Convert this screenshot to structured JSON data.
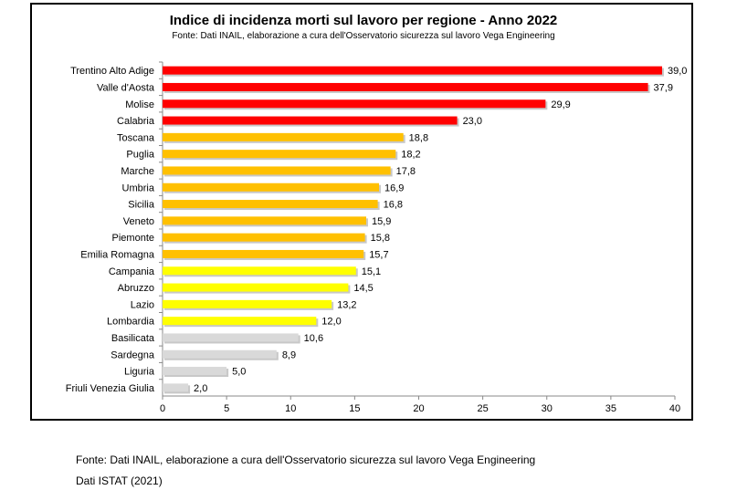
{
  "chart_data": {
    "type": "bar",
    "orientation": "horizontal",
    "title": "Indice di incidenza morti sul lavoro per regione - Anno 2022",
    "subtitle": "Fonte: Dati INAIL, elaborazione a cura dell'Osservatorio sicurezza sul lavoro Vega Engineering",
    "categories": [
      "Trentino Alto Adige",
      "Valle d'Aosta",
      "Molise",
      "Calabria",
      "Toscana",
      "Puglia",
      "Marche",
      "Umbria",
      "Sicilia",
      "Veneto",
      "Piemonte",
      "Emilia Romagna",
      "Campania",
      "Abruzzo",
      "Lazio",
      "Lombardia",
      "Basilicata",
      "Sardegna",
      "Liguria",
      "Friuli Venezia Giulia"
    ],
    "values": [
      39.0,
      37.9,
      29.9,
      23.0,
      18.8,
      18.2,
      17.8,
      16.9,
      16.8,
      15.9,
      15.8,
      15.7,
      15.1,
      14.5,
      13.2,
      12.0,
      10.6,
      8.9,
      5.0,
      2.0
    ],
    "value_labels": [
      "39,0",
      "37,9",
      "29,9",
      "23,0",
      "18,8",
      "18,2",
      "17,8",
      "16,9",
      "16,8",
      "15,9",
      "15,8",
      "15,7",
      "15,1",
      "14,5",
      "13,2",
      "12,0",
      "10,6",
      "8,9",
      "5,0",
      "2,0"
    ],
    "bar_colors": [
      "#ff0000",
      "#ff0000",
      "#ff0000",
      "#ff0000",
      "#ffc000",
      "#ffc000",
      "#ffc000",
      "#ffc000",
      "#ffc000",
      "#ffc000",
      "#ffc000",
      "#ffc000",
      "#ffff00",
      "#ffff00",
      "#ffff00",
      "#ffff00",
      "#d9d9d9",
      "#d9d9d9",
      "#d9d9d9",
      "#d9d9d9"
    ],
    "xlim": [
      0,
      40
    ],
    "xticks": [
      0,
      5,
      10,
      15,
      20,
      25,
      30,
      35,
      40
    ],
    "grid": false,
    "legend": "none"
  },
  "footer": {
    "line1": "Fonte: Dati INAIL, elaborazione a cura dell'Osservatorio sicurezza sul lavoro Vega Engineering",
    "line2": "Dati ISTAT (2021)"
  }
}
